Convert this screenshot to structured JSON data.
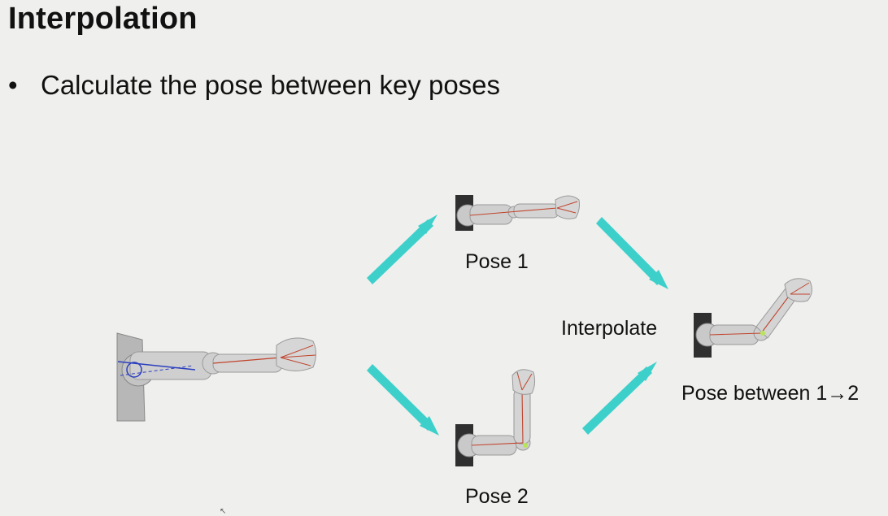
{
  "slide": {
    "title": "Interpolation",
    "bullet": "Calculate the pose between key poses"
  },
  "labels": {
    "pose1": "Pose 1",
    "pose2": "Pose 2",
    "interpolate": "Interpolate",
    "result": "Pose between 1→2"
  },
  "colors": {
    "background": "#efefed",
    "arrow": "#3dd0cb",
    "arm": "#c9c9c9",
    "bone": "#c0442c"
  },
  "icons": [
    "arrow",
    "robot-arm",
    "cursor-icon"
  ]
}
